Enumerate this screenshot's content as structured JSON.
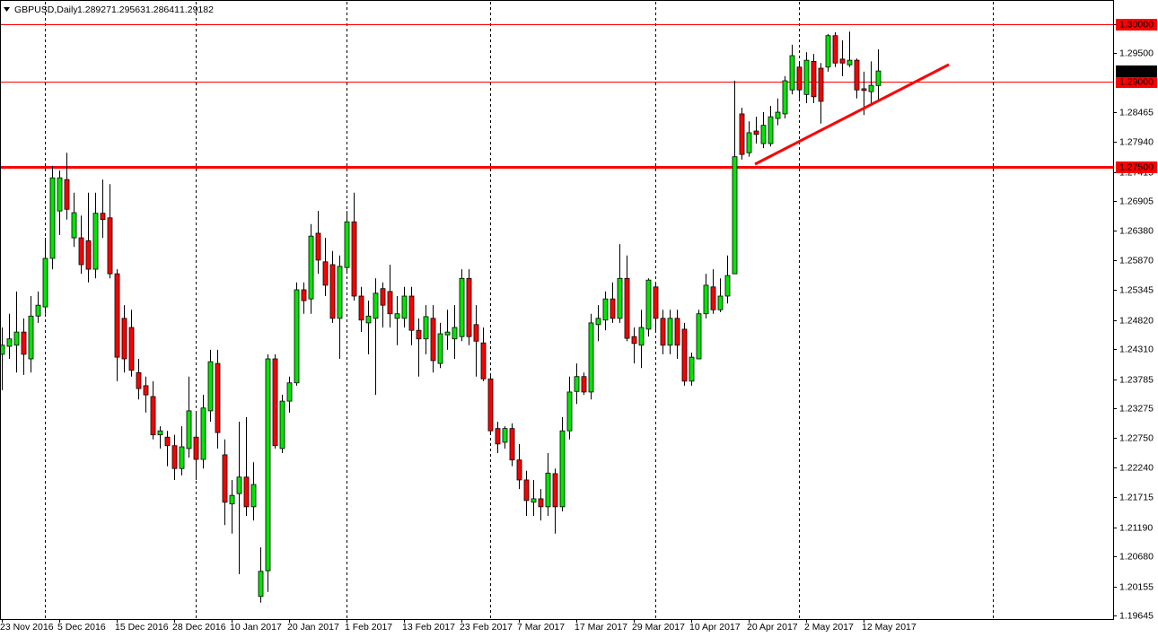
{
  "chart_data": {
    "type": "candlestick",
    "title": "GBPUSD,Daily",
    "title_ohlc": [
      1.28927,
      1.29563,
      1.28641,
      1.29182
    ],
    "categories": [
      "23 Nov 2016",
      null,
      null,
      null,
      null,
      null,
      null,
      null,
      "5 Dec 2016",
      null,
      null,
      null,
      null,
      null,
      null,
      null,
      "15 Dec 2016",
      null,
      null,
      null,
      null,
      null,
      null,
      null,
      "28 Dec 2016",
      null,
      null,
      null,
      null,
      null,
      null,
      null,
      "10 Jan 2017",
      null,
      null,
      null,
      null,
      null,
      null,
      null,
      "20 Jan 2017",
      null,
      null,
      null,
      null,
      null,
      null,
      null,
      "1 Feb 2017",
      null,
      null,
      null,
      null,
      null,
      null,
      null,
      "13 Feb 2017",
      null,
      null,
      null,
      null,
      null,
      null,
      null,
      "23 Feb 2017",
      null,
      null,
      null,
      null,
      null,
      null,
      null,
      "7 Mar 2017",
      null,
      null,
      null,
      null,
      null,
      null,
      null,
      "17 Mar 2017",
      null,
      null,
      null,
      null,
      null,
      null,
      null,
      "29 Mar 2017",
      null,
      null,
      null,
      null,
      null,
      null,
      null,
      "10 Apr 2017",
      null,
      null,
      null,
      null,
      null,
      null,
      null,
      "20 Apr 2017",
      null,
      null,
      null,
      null,
      null,
      null,
      null,
      "2 May 2017",
      null,
      null,
      null,
      null,
      null,
      null,
      null,
      "12 May 2017",
      null,
      null
    ],
    "open": [
      1.2422,
      1.2436,
      1.2438,
      1.2461,
      1.2414,
      1.2489,
      1.2505,
      1.259,
      1.2673,
      1.2728,
      1.2626,
      1.2626,
      1.2621,
      1.2571,
      1.2669,
      1.2661,
      1.2563,
      1.2485,
      1.2469,
      1.239,
      1.2367,
      1.2348,
      1.2281,
      1.2277,
      1.2262,
      1.2222,
      1.2257,
      1.2277,
      1.2238,
      1.2323,
      1.2406,
      1.2246,
      1.216,
      1.2178,
      1.2207,
      1.2155,
      1.1998,
      1.2043,
      1.2414,
      1.2257,
      1.234,
      1.2372,
      1.2535,
      1.2519,
      1.2634,
      1.2584,
      1.2579,
      1.2485,
      1.2574,
      1.2654,
      1.2524,
      1.2477,
      1.2485,
      1.2537,
      1.2532,
      1.2485,
      1.2485,
      1.2524,
      1.2464,
      1.2449,
      1.2485,
      1.2406,
      1.2456,
      1.2449,
      1.2453,
      1.2555,
      1.2474,
      1.2442,
      1.2379,
      1.2292,
      1.2268,
      1.2292,
      1.2237,
      1.2202,
      1.2163,
      1.2169,
      1.2155,
      1.2213,
      1.2155,
      1.2288,
      1.2357,
      1.2383,
      1.2356,
      1.2474,
      1.2482,
      1.2519,
      1.2485,
      1.2555,
      1.2453,
      1.2438,
      1.2466,
      1.254,
      1.2485,
      1.2438,
      1.2485,
      1.2466,
      1.2375,
      1.2414,
      1.2493,
      1.254,
      1.25,
      1.2524,
      1.2563,
      1.2843,
      1.2775,
      1.2813,
      1.2791,
      1.2791,
      1.2835,
      1.2843,
      1.2885,
      1.2925,
      1.2877,
      1.2935,
      1.2923,
      1.2925,
      1.298,
      1.2939,
      1.2929,
      1.2937,
      1.2887,
      1.2882,
      1.28927
    ],
    "high": [
      1.2469,
      1.2493,
      1.2532,
      1.2485,
      1.2524,
      1.2532,
      1.2626,
      1.2752,
      1.2744,
      1.2775,
      1.2705,
      1.2665,
      1.2705,
      1.2705,
      1.2728,
      1.272,
      1.2571,
      1.2508,
      1.25,
      1.2414,
      1.2383,
      1.2375,
      1.2296,
      1.2288,
      1.2281,
      1.2296,
      1.2383,
      1.232,
      1.2351,
      1.243,
      1.243,
      1.2273,
      1.2202,
      1.2304,
      1.2312,
      1.2233,
      1.2084,
      1.2422,
      1.2422,
      1.2351,
      1.2383,
      1.2548,
      1.2548,
      1.265,
      1.2673,
      1.2626,
      1.2603,
      1.2595,
      1.2673,
      1.2705,
      1.254,
      1.2516,
      1.2555,
      1.2548,
      1.2579,
      1.2524,
      1.254,
      1.254,
      1.2485,
      1.2508,
      1.2508,
      1.2477,
      1.25,
      1.2508,
      1.2571,
      1.2571,
      1.2508,
      1.2469,
      1.2386,
      1.2304,
      1.2296,
      1.2301,
      1.2265,
      1.2218,
      1.2202,
      1.2186,
      1.2249,
      1.2222,
      1.2312,
      1.2383,
      1.2406,
      1.239,
      1.2493,
      1.2508,
      1.2532,
      1.2548,
      1.2615,
      1.2595,
      1.2469,
      1.25,
      1.2555,
      1.2548,
      1.25,
      1.25,
      1.25,
      1.2477,
      1.2425,
      1.25,
      1.2563,
      1.2571,
      1.2555,
      1.2595,
      1.2901,
      1.2854,
      1.283,
      1.2838,
      1.2846,
      1.2857,
      1.287,
      1.2909,
      1.2964,
      1.2932,
      1.2951,
      1.2948,
      1.2932,
      1.2983,
      1.2986,
      1.2972,
      1.2987,
      1.294,
      1.2917,
      1.2935,
      1.29563
    ],
    "low": [
      1.2359,
      1.2414,
      1.239,
      1.2386,
      1.239,
      1.2477,
      1.2493,
      1.2571,
      1.2631,
      1.2658,
      1.261,
      1.2563,
      1.2548,
      1.2555,
      1.2626,
      1.2555,
      1.2375,
      1.239,
      1.2383,
      1.2343,
      1.232,
      1.2273,
      1.2257,
      1.2226,
      1.2202,
      1.221,
      1.2241,
      1.2202,
      1.2222,
      1.2304,
      1.2257,
      1.2123,
      1.2108,
      1.2037,
      1.2139,
      1.2131,
      1.1987,
      1.2006,
      1.2257,
      1.2249,
      1.232,
      1.2367,
      1.2493,
      1.2493,
      1.2563,
      1.2524,
      1.2477,
      1.2414,
      1.2563,
      1.2516,
      1.2461,
      1.2422,
      1.2351,
      1.2469,
      1.2469,
      1.2438,
      1.2469,
      1.2438,
      1.2383,
      1.2422,
      1.239,
      1.2398,
      1.243,
      1.2414,
      1.2445,
      1.2438,
      1.2383,
      1.2375,
      1.2281,
      1.2249,
      1.2257,
      1.2226,
      1.2186,
      1.2139,
      1.2139,
      1.2131,
      1.2139,
      1.2108,
      1.2147,
      1.2273,
      1.2335,
      1.2351,
      1.2343,
      1.2445,
      1.2464,
      1.2477,
      1.2477,
      1.2445,
      1.2406,
      1.2398,
      1.2453,
      1.2461,
      1.2422,
      1.2422,
      1.2414,
      1.2367,
      1.2367,
      1.2414,
      1.2485,
      1.2493,
      1.2496,
      1.2511,
      1.2563,
      1.2763,
      1.2768,
      1.2791,
      1.2783,
      1.2786,
      1.2823,
      1.2835,
      1.2877,
      1.287,
      1.2862,
      1.2862,
      1.2826,
      1.2917,
      1.2925,
      1.2909,
      1.2925,
      1.287,
      1.2841,
      1.2862,
      1.28641
    ],
    "close": [
      1.2438,
      1.2449,
      1.2461,
      1.2422,
      1.2489,
      1.2508,
      1.259,
      1.2731,
      1.2731,
      1.2676,
      1.267,
      1.2579,
      1.2571,
      1.2669,
      1.2658,
      1.2563,
      1.2417,
      1.2414,
      1.2394,
      1.2362,
      1.2351,
      1.2281,
      1.2288,
      1.2262,
      1.2222,
      1.226,
      1.2323,
      1.2238,
      1.2328,
      1.2409,
      1.2285,
      1.2163,
      1.2175,
      1.2207,
      1.2155,
      1.2194,
      1.2042,
      1.2414,
      1.2262,
      1.234,
      1.2372,
      1.2535,
      1.2516,
      1.2629,
      1.2587,
      1.2543,
      1.2485,
      1.2576,
      1.2654,
      1.2524,
      1.2482,
      1.2489,
      1.2529,
      1.2508,
      1.2493,
      1.2493,
      1.2524,
      1.2464,
      1.2449,
      1.2488,
      1.2411,
      1.2458,
      1.2461,
      1.2469,
      1.2555,
      1.2453,
      1.2445,
      1.2379,
      1.2288,
      1.2265,
      1.2292,
      1.2237,
      1.2202,
      1.2166,
      1.2169,
      1.2155,
      1.2214,
      1.2155,
      1.2288,
      1.2356,
      1.2383,
      1.2356,
      1.2477,
      1.2485,
      1.2519,
      1.2485,
      1.2555,
      1.245,
      1.2441,
      1.2469,
      1.2552,
      1.2485,
      1.2438,
      1.2485,
      1.2438,
      1.2375,
      1.2417,
      1.2493,
      1.2543,
      1.25,
      1.2524,
      1.256,
      1.2768,
      1.2772,
      1.281,
      1.2807,
      1.2823,
      1.2838,
      1.2846,
      1.2901,
      1.2945,
      1.2885,
      1.2937,
      1.2873,
      1.2865,
      1.298,
      1.2932,
      1.2932,
      1.2937,
      1.2885,
      1.2884,
      1.2893,
      1.29182
    ],
    "up_color": "#00e600",
    "down_color": "#ff0000",
    "ylim": [
      1.19584,
      1.30393
    ],
    "yticks": [
      {
        "value": 1.3,
        "label": "1.30000"
      },
      {
        "value": 1.295,
        "label": "1.29500"
      },
      1.28465,
      {
        "value": 1.2794,
        "label": "1.27940"
      },
      1.27415,
      1.26905,
      {
        "value": 1.2638,
        "label": "1.26380"
      },
      {
        "value": 1.2587,
        "label": "1.25870"
      },
      1.25345,
      {
        "value": 1.2482,
        "label": "1.24820"
      },
      {
        "value": 1.2431,
        "label": "1.24310"
      },
      1.23785,
      1.23275,
      {
        "value": 1.2275,
        "label": "1.22750"
      },
      {
        "value": 1.2224,
        "label": "1.22240"
      },
      1.21715,
      {
        "value": 1.2119,
        "label": "1.21190"
      },
      {
        "value": 1.2068,
        "label": "1.20680"
      },
      1.20155,
      1.19645
    ],
    "hlines": [
      {
        "value": 1.3,
        "label": "1.30000",
        "color": "#ff0000",
        "line_width": 1
      },
      {
        "value": 1.29,
        "label": "1.29000",
        "color": "#ff0000",
        "line_width": 1
      },
      {
        "value": 1.275,
        "label": "1.27500",
        "color": "#ff0000",
        "line_width": 3
      }
    ],
    "last_price": 1.29182
  }
}
